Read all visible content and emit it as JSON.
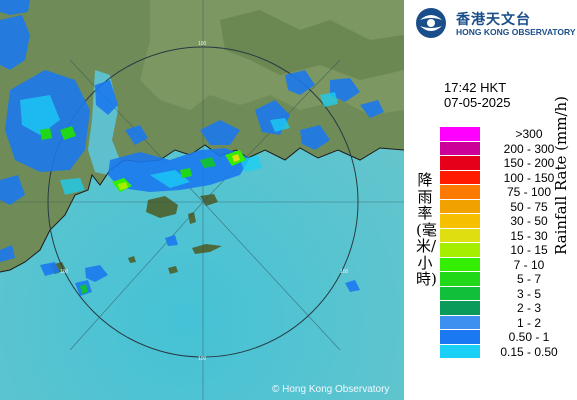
{
  "map": {
    "copyright": "© Hong Kong Observatory",
    "range_labels": [
      "100",
      "100",
      "100",
      "100"
    ]
  },
  "logo": {
    "name_cn": "香港天文台",
    "name_en": "HONG KONG OBSERVATORY"
  },
  "timestamp": {
    "time": "17:42 HKT",
    "date": "07-05-2025"
  },
  "legend": {
    "title_cn": "降雨率(毫米/小時)",
    "title_en": "Rainfall Rate (mm/h)",
    "items": [
      {
        "label": ">300",
        "color": "#ff00ff"
      },
      {
        "label": "200 - 300",
        "color": "#cc0099"
      },
      {
        "label": "150 - 200",
        "color": "#e6001a"
      },
      {
        "label": "100 - 150",
        "color": "#ff1a00"
      },
      {
        "label": "75 - 100",
        "color": "#ff7a00"
      },
      {
        "label": "50 - 75",
        "color": "#f2a200"
      },
      {
        "label": "30 - 50",
        "color": "#f6c000"
      },
      {
        "label": "15 - 30",
        "color": "#dede10"
      },
      {
        "label": "10 - 15",
        "color": "#a6ee00"
      },
      {
        "label": "7 - 10",
        "color": "#33ee00"
      },
      {
        "label": "5 - 7",
        "color": "#20d818"
      },
      {
        "label": "3 - 5",
        "color": "#12bf3a"
      },
      {
        "label": "2 - 3",
        "color": "#0a9a5a"
      },
      {
        "label": "1 - 2",
        "color": "#3d8ff0"
      },
      {
        "label": "0.50 - 1",
        "color": "#1a78f0"
      },
      {
        "label": "0.15 - 0.50",
        "color": "#1ad0f6"
      }
    ]
  }
}
